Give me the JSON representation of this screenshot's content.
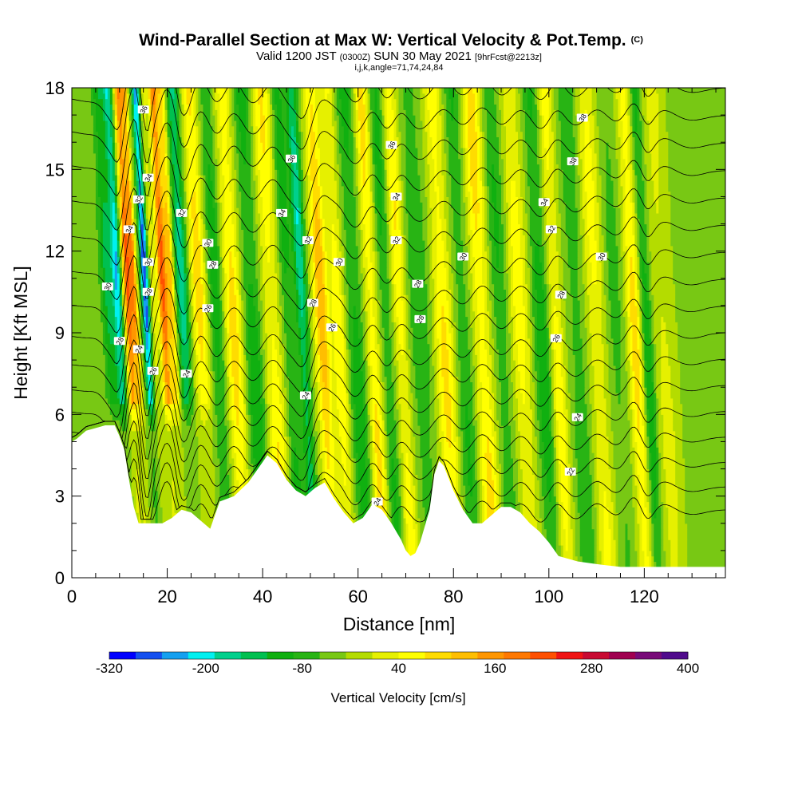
{
  "chart_data": {
    "type": "heatmap",
    "title": "Wind-Parallel Section at Max W: Vertical Velocity & Pot.Temp.",
    "title_mark": "(C)",
    "subtitle_main_a": "Valid 1200 JST",
    "subtitle_small_a": "(0300Z)",
    "subtitle_main_b": "SUN 30 May 2021",
    "subtitle_small_b": "[9hrFcst@2213z]",
    "info_line": "i,j,k,angle=71,74,24,84",
    "xlabel": "Distance [nm]",
    "ylabel": "Height [Kft MSL]",
    "xlim": [
      0,
      137
    ],
    "ylim": [
      0,
      18
    ],
    "x_ticks": [
      0,
      20,
      40,
      60,
      80,
      100,
      120
    ],
    "y_ticks": [
      0,
      3,
      6,
      9,
      12,
      15,
      18
    ],
    "colorbar": {
      "label": "Vertical Velocity [cm/s]",
      "min": -320,
      "max": 400,
      "step": 40,
      "tick_values": [
        -320,
        -200,
        -80,
        40,
        160,
        280,
        400
      ],
      "colors": [
        "#0000ff",
        "#1450f0",
        "#14a0f0",
        "#00f0f0",
        "#00d08c",
        "#00c050",
        "#10b010",
        "#28b414",
        "#78c814",
        "#b4dc00",
        "#e6f000",
        "#ffff00",
        "#ffdc00",
        "#ffbe00",
        "#ff9600",
        "#ff7800",
        "#ff5000",
        "#f01414",
        "#c80a32",
        "#a00050",
        "#780a78",
        "#500a8c"
      ]
    },
    "terrain": [
      [
        0,
        5
      ],
      [
        1,
        5.1
      ],
      [
        3,
        5.4
      ],
      [
        5,
        5.5
      ],
      [
        7,
        5.6
      ],
      [
        9,
        5.6
      ],
      [
        10,
        5.2
      ],
      [
        11,
        4.7
      ],
      [
        12,
        3.6
      ],
      [
        13,
        2.6
      ],
      [
        14,
        2.0
      ],
      [
        17,
        2.0
      ],
      [
        19,
        2.0
      ],
      [
        21,
        2.2
      ],
      [
        23,
        2.5
      ],
      [
        25,
        2.4
      ],
      [
        27,
        2.1
      ],
      [
        29,
        1.8
      ],
      [
        31,
        2.8
      ],
      [
        34,
        3.0
      ],
      [
        37,
        3.5
      ],
      [
        39,
        4.0
      ],
      [
        41,
        4.5
      ],
      [
        43,
        4.2
      ],
      [
        45,
        3.6
      ],
      [
        47,
        3.2
      ],
      [
        49,
        3.0
      ],
      [
        51,
        3.3
      ],
      [
        53,
        3.5
      ],
      [
        55,
        2.9
      ],
      [
        57,
        2.4
      ],
      [
        59,
        2.0
      ],
      [
        61,
        2.2
      ],
      [
        63,
        2.7
      ],
      [
        65,
        2.5
      ],
      [
        67,
        2.0
      ],
      [
        69,
        1.4
      ],
      [
        70,
        1.0
      ],
      [
        71,
        0.8
      ],
      [
        72,
        0.9
      ],
      [
        73,
        1.3
      ],
      [
        75,
        2.5
      ],
      [
        76,
        3.8
      ],
      [
        77,
        4.3
      ],
      [
        78,
        4.1
      ],
      [
        80,
        3.2
      ],
      [
        82,
        2.5
      ],
      [
        84,
        2.0
      ],
      [
        86,
        2.0
      ],
      [
        88,
        2.3
      ],
      [
        90,
        2.6
      ],
      [
        92,
        2.6
      ],
      [
        94,
        2.4
      ],
      [
        96,
        2.0
      ],
      [
        98,
        1.7
      ],
      [
        100,
        1.3
      ],
      [
        102,
        0.8
      ],
      [
        104,
        0.7
      ],
      [
        106,
        0.6
      ],
      [
        110,
        0.5
      ],
      [
        115,
        0.4
      ],
      [
        122,
        0.4
      ],
      [
        130,
        0.4
      ],
      [
        137,
        0.4
      ]
    ],
    "w_bands": [
      {
        "x": 4,
        "w": 2.5,
        "amp": -40
      },
      {
        "x": 8,
        "w": 1.3,
        "amp": -140
      },
      {
        "x": 10,
        "w": 1.0,
        "amp": -240
      },
      {
        "x": 12.2,
        "w": 1.0,
        "amp": 300
      },
      {
        "x": 13.5,
        "w": 0.6,
        "amp": 200
      },
      {
        "x": 15.8,
        "w": 0.8,
        "amp": -320
      },
      {
        "x": 17.3,
        "w": 0.6,
        "amp": 60
      },
      {
        "x": 19.5,
        "w": 1.0,
        "amp": 300
      },
      {
        "x": 21.2,
        "w": 0.8,
        "amp": 180
      },
      {
        "x": 23.5,
        "w": 1.3,
        "amp": -200
      },
      {
        "x": 27,
        "w": 1.5,
        "amp": 160
      },
      {
        "x": 30.5,
        "w": 1.5,
        "amp": -110
      },
      {
        "x": 34,
        "w": 1.8,
        "amp": 150
      },
      {
        "x": 38,
        "w": 2.0,
        "amp": -120
      },
      {
        "x": 42,
        "w": 2.0,
        "amp": 130
      },
      {
        "x": 45.5,
        "w": 1.5,
        "amp": -110
      },
      {
        "x": 48.5,
        "w": 1.2,
        "amp": -200
      },
      {
        "x": 52.5,
        "w": 1.5,
        "amp": 200
      },
      {
        "x": 56,
        "w": 1.5,
        "amp": 120
      },
      {
        "x": 59.5,
        "w": 2.0,
        "amp": -110
      },
      {
        "x": 63,
        "w": 1.5,
        "amp": 150
      },
      {
        "x": 66,
        "w": 1.5,
        "amp": -100
      },
      {
        "x": 69,
        "w": 1.5,
        "amp": 130
      },
      {
        "x": 73,
        "w": 2.5,
        "amp": -80
      },
      {
        "x": 78,
        "w": 2.0,
        "amp": 140
      },
      {
        "x": 82,
        "w": 2.0,
        "amp": -90
      },
      {
        "x": 86,
        "w": 2.0,
        "amp": 150
      },
      {
        "x": 90,
        "w": 2.0,
        "amp": -90
      },
      {
        "x": 94,
        "w": 2.0,
        "amp": 110
      },
      {
        "x": 98.5,
        "w": 1.8,
        "amp": -120
      },
      {
        "x": 101.5,
        "w": 1.5,
        "amp": 120
      },
      {
        "x": 106,
        "w": 2.0,
        "amp": -80
      },
      {
        "x": 110,
        "w": 2.0,
        "amp": 100
      },
      {
        "x": 114,
        "w": 2.0,
        "amp": -60
      },
      {
        "x": 118,
        "w": 1.5,
        "amp": 150
      },
      {
        "x": 120.5,
        "w": 1.2,
        "amp": -130
      },
      {
        "x": 124,
        "w": 2.0,
        "amp": 60
      },
      {
        "x": 130,
        "w": 2.5,
        "amp": -40
      }
    ],
    "theta_levels": [
      22,
      23,
      24,
      25,
      26,
      27,
      28,
      29,
      30,
      31,
      32,
      33,
      34,
      35,
      36,
      37,
      38
    ],
    "theta_labels": [
      {
        "text": "36",
        "x": 15,
        "y": 17.2
      },
      {
        "text": "34",
        "x": 16,
        "y": 14.7
      },
      {
        "text": "32",
        "x": 14,
        "y": 13.9
      },
      {
        "text": "34",
        "x": 12,
        "y": 12.8
      },
      {
        "text": "30",
        "x": 16,
        "y": 11.6
      },
      {
        "text": "30",
        "x": 7.5,
        "y": 10.7
      },
      {
        "text": "28",
        "x": 16,
        "y": 10.5
      },
      {
        "text": "28",
        "x": 10,
        "y": 8.7
      },
      {
        "text": "24",
        "x": 14,
        "y": 8.4
      },
      {
        "text": "26",
        "x": 17,
        "y": 7.6
      },
      {
        "text": "24",
        "x": 24,
        "y": 7.5
      },
      {
        "text": "32",
        "x": 23,
        "y": 13.4
      },
      {
        "text": "30",
        "x": 28.5,
        "y": 12.3
      },
      {
        "text": "28",
        "x": 29.5,
        "y": 11.5
      },
      {
        "text": "26",
        "x": 28.5,
        "y": 9.9
      },
      {
        "text": "36",
        "x": 46,
        "y": 15.4
      },
      {
        "text": "34",
        "x": 44,
        "y": 13.4
      },
      {
        "text": "32",
        "x": 49.5,
        "y": 12.4
      },
      {
        "text": "30",
        "x": 56,
        "y": 11.6
      },
      {
        "text": "28",
        "x": 50.5,
        "y": 10.1
      },
      {
        "text": "26",
        "x": 54.5,
        "y": 9.2
      },
      {
        "text": "24",
        "x": 49,
        "y": 6.7
      },
      {
        "text": "36",
        "x": 67,
        "y": 15.9
      },
      {
        "text": "34",
        "x": 68,
        "y": 14.0
      },
      {
        "text": "32",
        "x": 68,
        "y": 12.4
      },
      {
        "text": "28",
        "x": 72.5,
        "y": 10.8
      },
      {
        "text": "28",
        "x": 73,
        "y": 9.5
      },
      {
        "text": "30",
        "x": 82,
        "y": 11.8
      },
      {
        "text": "24",
        "x": 64,
        "y": 2.8
      },
      {
        "text": "34",
        "x": 99,
        "y": 13.8
      },
      {
        "text": "32",
        "x": 100.5,
        "y": 12.8
      },
      {
        "text": "28",
        "x": 102.5,
        "y": 10.4
      },
      {
        "text": "26",
        "x": 101.5,
        "y": 8.8
      },
      {
        "text": "38",
        "x": 107,
        "y": 16.9
      },
      {
        "text": "38",
        "x": 105,
        "y": 15.3
      },
      {
        "text": "30",
        "x": 111,
        "y": 11.8
      },
      {
        "text": "24",
        "x": 106,
        "y": 5.9
      },
      {
        "text": "22",
        "x": 104.5,
        "y": 3.9
      }
    ]
  }
}
